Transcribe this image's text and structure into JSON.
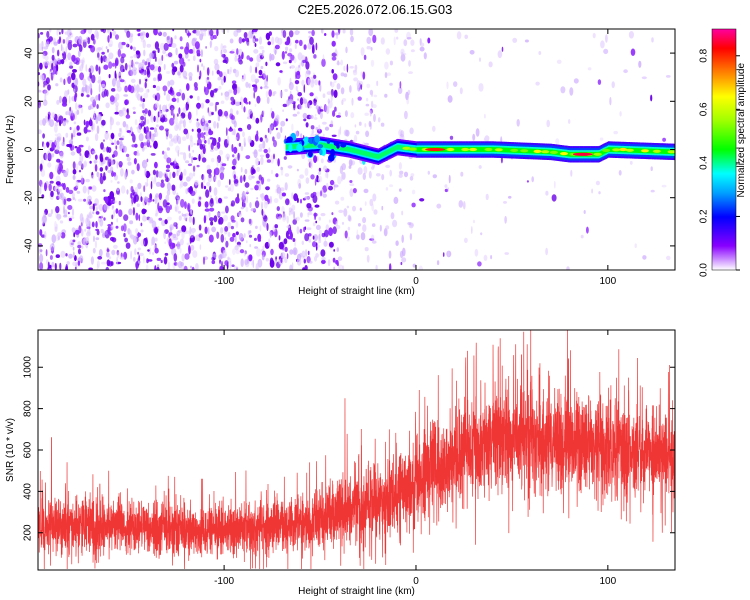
{
  "title": "C2E5.2026.072.06.15.G03",
  "chart_data": [
    {
      "type": "heatmap",
      "xlabel": "Height of straight line (km)",
      "ylabel": "Frequency (Hz)",
      "xlim": [
        -197,
        135
      ],
      "ylim": [
        -50,
        50
      ],
      "xticks": [
        -100,
        0,
        100
      ],
      "yticks": [
        -40,
        -20,
        0,
        20,
        40
      ],
      "colorbar": {
        "label": "Normalized spectral amplitude",
        "range": [
          0.0,
          0.9
        ],
        "ticks": [
          0.0,
          0.2,
          0.4,
          0.6,
          0.8
        ]
      },
      "description_series": [
        {
          "name": "noise_region",
          "x_range": [
            -197,
            -35
          ],
          "frequency_range": [
            -50,
            50
          ],
          "amplitude_range": [
            0.05,
            0.15
          ]
        },
        {
          "name": "carrier_line",
          "x_range": [
            -68,
            135
          ],
          "frequency": 0,
          "amplitude_range": [
            0.3,
            0.9
          ]
        }
      ],
      "carrier_offsets": [
        {
          "x": -68,
          "f": 1
        },
        {
          "x": -50,
          "f": 2
        },
        {
          "x": -35,
          "f": 0
        },
        {
          "x": -20,
          "f": -3
        },
        {
          "x": -10,
          "f": 1
        },
        {
          "x": 0,
          "f": 0
        },
        {
          "x": 40,
          "f": 0
        },
        {
          "x": 70,
          "f": -1
        },
        {
          "x": 80,
          "f": -2
        },
        {
          "x": 95,
          "f": -2
        },
        {
          "x": 100,
          "f": 0
        },
        {
          "x": 135,
          "f": -1
        }
      ],
      "peak_spots": [
        {
          "x": 10,
          "f": 0,
          "amp": 0.85
        },
        {
          "x": 87,
          "f": -2,
          "amp": 0.9
        },
        {
          "x": 108,
          "f": 0,
          "amp": 0.7
        }
      ]
    },
    {
      "type": "line",
      "xlabel": "Height of straight line (km)",
      "ylabel": "SNR (10 * v/v)",
      "xlim": [
        -197,
        135
      ],
      "ylim": [
        20,
        1180
      ],
      "xticks": [
        -100,
        0,
        100
      ],
      "yticks": [
        200,
        400,
        600,
        800,
        1000
      ],
      "series": [
        {
          "name": "SNR",
          "color": "#f03535",
          "envelope": [
            {
              "x": -197,
              "mean": 240,
              "spread": 130
            },
            {
              "x": -150,
              "mean": 230,
              "spread": 120
            },
            {
              "x": -110,
              "mean": 205,
              "spread": 110
            },
            {
              "x": -80,
              "mean": 230,
              "spread": 120
            },
            {
              "x": -50,
              "mean": 260,
              "spread": 140
            },
            {
              "x": -30,
              "mean": 320,
              "spread": 170
            },
            {
              "x": -10,
              "mean": 380,
              "spread": 190
            },
            {
              "x": 10,
              "mean": 520,
              "spread": 210
            },
            {
              "x": 30,
              "mean": 620,
              "spread": 220
            },
            {
              "x": 50,
              "mean": 660,
              "spread": 230
            },
            {
              "x": 70,
              "mean": 650,
              "spread": 230
            },
            {
              "x": 90,
              "mean": 620,
              "spread": 220
            },
            {
              "x": 110,
              "mean": 600,
              "spread": 210
            },
            {
              "x": 135,
              "mean": 580,
              "spread": 200
            }
          ],
          "peaks": [
            {
              "x": 79,
              "value": 1180
            },
            {
              "x": 55,
              "value": 1060
            },
            {
              "x": -37,
              "value": 850
            },
            {
              "x": -190,
              "value": 660
            }
          ]
        }
      ]
    }
  ]
}
